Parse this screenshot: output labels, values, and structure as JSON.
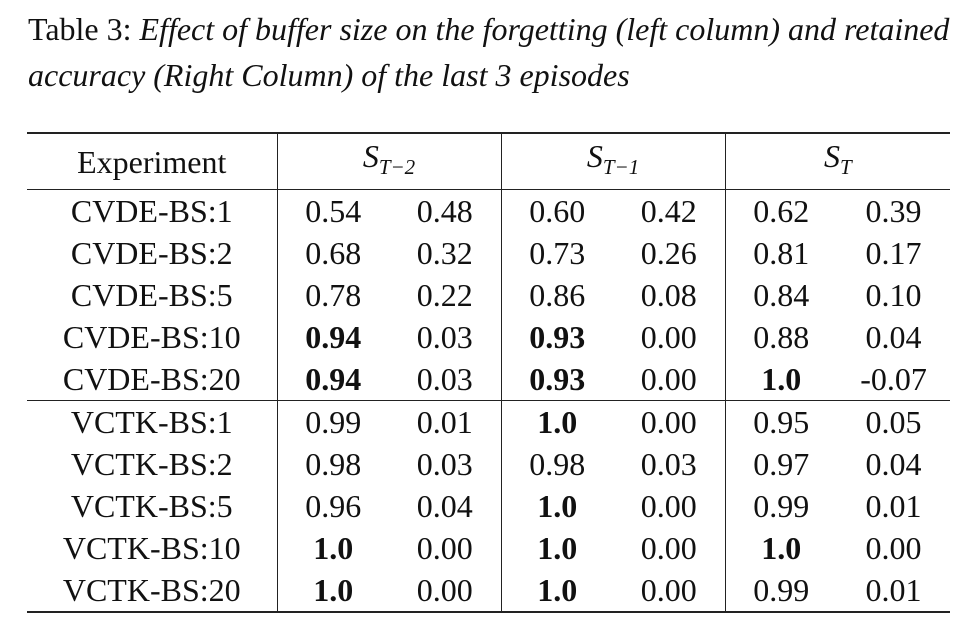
{
  "caption": {
    "label": "Table 3:",
    "text": "Effect of buffer size on the forgetting (left column) and retained accuracy (Right Column) of the last 3 episodes"
  },
  "table": {
    "header": {
      "experiment": "Experiment",
      "groups": [
        {
          "symbol": "S",
          "subscript": "T−2"
        },
        {
          "symbol": "S",
          "subscript": "T−1"
        },
        {
          "symbol": "S",
          "subscript": "T"
        }
      ]
    },
    "rows": [
      {
        "name": "CVDE-BS:1",
        "values": [
          "0.54",
          "0.48",
          "0.60",
          "0.42",
          "0.62",
          "0.39"
        ],
        "bold": [
          false,
          false,
          false,
          false,
          false,
          false
        ]
      },
      {
        "name": "CVDE-BS:2",
        "values": [
          "0.68",
          "0.32",
          "0.73",
          "0.26",
          "0.81",
          "0.17"
        ],
        "bold": [
          false,
          false,
          false,
          false,
          false,
          false
        ]
      },
      {
        "name": "CVDE-BS:5",
        "values": [
          "0.78",
          "0.22",
          "0.86",
          "0.08",
          "0.84",
          "0.10"
        ],
        "bold": [
          false,
          false,
          false,
          false,
          false,
          false
        ]
      },
      {
        "name": "CVDE-BS:10",
        "values": [
          "0.94",
          "0.03",
          "0.93",
          "0.00",
          "0.88",
          "0.04"
        ],
        "bold": [
          true,
          false,
          true,
          false,
          false,
          false
        ]
      },
      {
        "name": "CVDE-BS:20",
        "values": [
          "0.94",
          "0.03",
          "0.93",
          "0.00",
          "1.0",
          "-0.07"
        ],
        "bold": [
          true,
          false,
          true,
          false,
          true,
          false
        ]
      },
      {
        "name": "VCTK-BS:1",
        "values": [
          "0.99",
          "0.01",
          "1.0",
          "0.00",
          "0.95",
          "0.05"
        ],
        "bold": [
          false,
          false,
          true,
          false,
          false,
          false
        ]
      },
      {
        "name": "VCTK-BS:2",
        "values": [
          "0.98",
          "0.03",
          "0.98",
          "0.03",
          "0.97",
          "0.04"
        ],
        "bold": [
          false,
          false,
          false,
          false,
          false,
          false
        ]
      },
      {
        "name": "VCTK-BS:5",
        "values": [
          "0.96",
          "0.04",
          "1.0",
          "0.00",
          "0.99",
          "0.01"
        ],
        "bold": [
          false,
          false,
          true,
          false,
          false,
          false
        ]
      },
      {
        "name": "VCTK-BS:10",
        "values": [
          "1.0",
          "0.00",
          "1.0",
          "0.00",
          "1.0",
          "0.00"
        ],
        "bold": [
          true,
          false,
          true,
          false,
          true,
          false
        ]
      },
      {
        "name": "VCTK-BS:20",
        "values": [
          "1.0",
          "0.00",
          "1.0",
          "0.00",
          "0.99",
          "0.01"
        ],
        "bold": [
          true,
          false,
          true,
          false,
          false,
          false
        ]
      }
    ]
  }
}
